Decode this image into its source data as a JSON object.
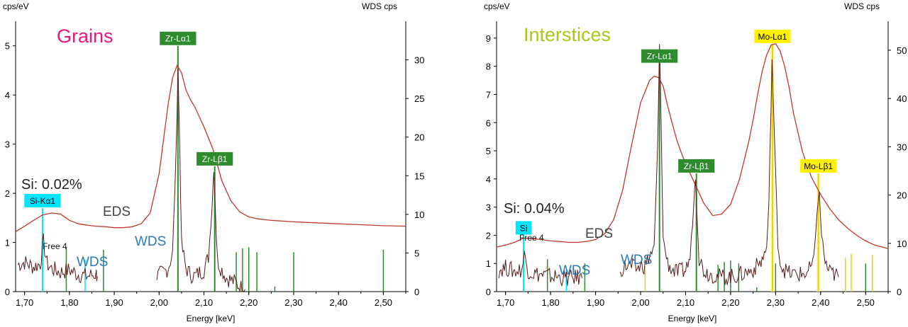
{
  "colors": {
    "eds_line": "#c0392b",
    "wds_line": "#5a1a1a",
    "green_marker": "#2e8b2e",
    "cyan_marker": "#00e5ff",
    "yellow_marker": "#fff000",
    "wds_text": "#2a7ab8",
    "grains_title": "#e8177f",
    "interstices_title": "#a6c81d",
    "axis": "#000000",
    "yellow_fill": "#fff7a8"
  },
  "chart_data": [
    {
      "type": "line",
      "title": "Grains",
      "xlabel": "Energy [keV]",
      "ylabel_left": "cps/eV",
      "ylabel_right_top": "WDS  cps",
      "xlim": [
        1.68,
        2.55
      ],
      "ylim_left": [
        0,
        5.5
      ],
      "ylim_right": [
        0,
        35
      ],
      "xticks": [
        "1,70",
        "1,80",
        "1,90",
        "2,00",
        "2,10",
        "2,20",
        "2,30",
        "2,40",
        "2,50"
      ],
      "xtick_values": [
        1.7,
        1.8,
        1.9,
        2.0,
        2.1,
        2.2,
        2.3,
        2.4,
        2.5
      ],
      "yticks_left": [
        "0",
        "1",
        "2",
        "3",
        "4",
        "5"
      ],
      "ytick_left_values": [
        0,
        1,
        2,
        3,
        4,
        5
      ],
      "yticks_right": [
        "0",
        "5",
        "10",
        "15",
        "20",
        "25",
        "30"
      ],
      "ytick_right_values": [
        0,
        5,
        10,
        15,
        20,
        25,
        30
      ],
      "eds_series": {
        "name": "EDS",
        "x": [
          1.68,
          1.7,
          1.72,
          1.74,
          1.76,
          1.78,
          1.8,
          1.82,
          1.84,
          1.86,
          1.88,
          1.9,
          1.92,
          1.94,
          1.96,
          1.98,
          2.0,
          2.01,
          2.02,
          2.03,
          2.04,
          2.05,
          2.06,
          2.07,
          2.08,
          2.09,
          2.1,
          2.12,
          2.14,
          2.16,
          2.18,
          2.2,
          2.22,
          2.25,
          2.3,
          2.35,
          2.4,
          2.45,
          2.5,
          2.55
        ],
        "y": [
          1.22,
          1.33,
          1.45,
          1.56,
          1.6,
          1.58,
          1.45,
          1.38,
          1.35,
          1.33,
          1.32,
          1.3,
          1.3,
          1.32,
          1.38,
          1.6,
          2.4,
          3.1,
          3.8,
          4.35,
          4.6,
          4.45,
          4.1,
          3.9,
          3.75,
          3.55,
          3.35,
          2.9,
          2.25,
          1.85,
          1.62,
          1.52,
          1.48,
          1.45,
          1.42,
          1.4,
          1.38,
          1.36,
          1.34,
          1.33
        ]
      },
      "wds_series": {
        "name": "WDS",
        "segments": [
          {
            "x": [
              1.685,
              1.7,
              1.72,
              1.735,
              1.742,
              1.75,
              1.76,
              1.78,
              1.8,
              1.82,
              1.84,
              1.86,
              1.862
            ],
            "y": [
              3.5,
              3.8,
              3.2,
              3.6,
              6.5,
              3.6,
              3.0,
              2.5,
              2.8,
              2.2,
              2.0,
              2.3,
              2.0
            ]
          },
          {
            "x": [
              1.995,
              2.01,
              2.02,
              2.03,
              2.038,
              2.042,
              2.046,
              2.05,
              2.06,
              2.07,
              2.08,
              2.09,
              2.1,
              2.11,
              2.118,
              2.122,
              2.126,
              2.13,
              2.14,
              2.15,
              2.16,
              2.17,
              2.18,
              2.192
            ],
            "y": [
              2.0,
              2.5,
              3.0,
              5.0,
              18.0,
              29.0,
              19.0,
              6.0,
              3.0,
              2.2,
              2.0,
              2.5,
              2.8,
              4.5,
              11.0,
              16.0,
              10.0,
              4.0,
              2.8,
              1.8,
              1.5,
              1.2,
              0.6,
              0.3
            ]
          }
        ]
      },
      "markers": [
        {
          "label": "Si-Kα1",
          "x": 1.74,
          "height": 1.7,
          "color": "cyan",
          "labelled": true
        },
        {
          "label": "",
          "x": 1.835,
          "height": 0.65,
          "color": "cyan",
          "labelled": false
        },
        {
          "label": "Zr-Lα1",
          "x": 2.042,
          "height": 5.0,
          "color": "green",
          "labelled": true
        },
        {
          "label": "Zr-Lβ1",
          "x": 2.124,
          "height": 2.55,
          "color": "green",
          "labelled": true
        },
        {
          "label": "",
          "x": 1.793,
          "height": 0.9,
          "color": "green",
          "labelled": false
        },
        {
          "label": "",
          "x": 1.876,
          "height": 0.85,
          "color": "green",
          "labelled": false
        },
        {
          "label": "",
          "x": 2.172,
          "height": 0.8,
          "color": "green",
          "labelled": false
        },
        {
          "label": "",
          "x": 2.186,
          "height": 0.88,
          "color": "green",
          "labelled": false
        },
        {
          "label": "",
          "x": 2.2,
          "height": 0.9,
          "color": "green",
          "labelled": false
        },
        {
          "label": "",
          "x": 2.218,
          "height": 0.8,
          "color": "green",
          "labelled": false
        },
        {
          "label": "",
          "x": 2.258,
          "height": 0.1,
          "color": "green",
          "labelled": false
        },
        {
          "label": "",
          "x": 2.3,
          "height": 0.8,
          "color": "green",
          "labelled": false
        },
        {
          "label": "",
          "x": 2.5,
          "height": 0.85,
          "color": "green",
          "labelled": false
        }
      ],
      "annotations": {
        "title_text": "Grains",
        "si_text": "Si: 0.02%",
        "eds_text": "EDS",
        "wds_text_1": "WDS",
        "wds_text_2": "WDS",
        "free_text": "Free 4"
      }
    },
    {
      "type": "line",
      "title": "Interstices",
      "xlabel": "Energy [keV]",
      "ylabel_left": "cps/eV",
      "ylabel_right_top": "WDS  cps",
      "xlim": [
        1.68,
        2.55
      ],
      "ylim_left": [
        0,
        9.6
      ],
      "ylim_right": [
        0,
        56
      ],
      "xticks": [
        "1,70",
        "1,80",
        "1,90",
        "2,00",
        "2,10",
        "2,20",
        "2,30",
        "2,40",
        "2,50"
      ],
      "xtick_values": [
        1.7,
        1.8,
        1.9,
        2.0,
        2.1,
        2.2,
        2.3,
        2.4,
        2.5
      ],
      "yticks_left": [
        "0",
        "1",
        "2",
        "3",
        "4",
        "5",
        "6",
        "7",
        "8",
        "9"
      ],
      "ytick_left_values": [
        0,
        1,
        2,
        3,
        4,
        5,
        6,
        7,
        8,
        9
      ],
      "yticks_right": [
        "0",
        "10",
        "20",
        "30",
        "40",
        "50"
      ],
      "ytick_right_values": [
        0,
        10,
        20,
        30,
        40,
        50
      ],
      "eds_series": {
        "name": "EDS",
        "x": [
          1.68,
          1.7,
          1.72,
          1.74,
          1.76,
          1.78,
          1.8,
          1.82,
          1.84,
          1.86,
          1.88,
          1.9,
          1.92,
          1.94,
          1.96,
          1.98,
          2.0,
          2.02,
          2.03,
          2.04,
          2.05,
          2.06,
          2.07,
          2.08,
          2.09,
          2.1,
          2.12,
          2.14,
          2.16,
          2.18,
          2.2,
          2.22,
          2.24,
          2.25,
          2.26,
          2.27,
          2.28,
          2.29,
          2.3,
          2.31,
          2.32,
          2.33,
          2.34,
          2.36,
          2.38,
          2.4,
          2.42,
          2.44,
          2.46,
          2.48,
          2.5,
          2.52,
          2.55
        ],
        "y": [
          1.58,
          1.65,
          1.75,
          1.9,
          1.88,
          1.85,
          1.8,
          1.78,
          1.75,
          1.75,
          1.78,
          1.85,
          2.05,
          2.55,
          3.6,
          5.2,
          6.7,
          7.5,
          7.65,
          7.6,
          7.3,
          6.6,
          6.0,
          5.4,
          4.95,
          4.55,
          3.85,
          3.15,
          2.7,
          2.75,
          3.1,
          4.0,
          5.3,
          6.1,
          7.0,
          7.8,
          8.4,
          8.75,
          8.8,
          8.55,
          8.0,
          7.25,
          6.3,
          4.95,
          4.05,
          3.45,
          2.95,
          2.55,
          2.25,
          2.0,
          1.8,
          1.65,
          1.53
        ]
      },
      "wds_series": {
        "name": "WDS",
        "segments": [
          {
            "x": [
              1.685,
              1.7,
              1.72,
              1.736,
              1.742,
              1.75,
              1.76,
              1.78,
              1.8,
              1.82,
              1.84,
              1.86,
              1.87
            ],
            "y": [
              4.5,
              5.0,
              4.2,
              4.6,
              7.5,
              4.5,
              3.8,
              3.5,
              3.2,
              3.0,
              2.7,
              3.0,
              2.8
            ]
          },
          {
            "x": [
              1.955,
              1.97,
              1.99,
              2.01,
              2.03,
              2.038,
              2.042,
              2.046,
              2.05,
              2.06,
              2.07,
              2.08,
              2.09,
              2.1,
              2.11,
              2.118,
              2.122,
              2.126,
              2.13,
              2.14,
              2.15,
              2.16,
              2.17,
              2.19,
              2.21,
              2.23,
              2.25,
              2.27,
              2.28,
              2.285,
              2.292,
              2.298,
              2.305,
              2.31,
              2.32,
              2.33,
              2.35,
              2.37,
              2.385,
              2.392,
              2.397,
              2.402,
              2.41,
              2.42,
              2.43,
              2.44
            ],
            "y": [
              4.5,
              5.5,
              4.8,
              5.5,
              9.0,
              30.0,
              51.0,
              33.0,
              11.0,
              6.0,
              4.5,
              4.0,
              4.2,
              4.5,
              7.0,
              18.0,
              24.0,
              15.0,
              7.0,
              4.5,
              3.8,
              3.5,
              3.2,
              3.0,
              3.2,
              3.8,
              4.5,
              6.5,
              9.0,
              18.0,
              48.0,
              30.0,
              10.0,
              6.0,
              4.5,
              3.8,
              3.5,
              3.8,
              6.0,
              17.0,
              20.0,
              12.0,
              6.0,
              4.0,
              3.6,
              3.0
            ]
          }
        ]
      },
      "markers": [
        {
          "label": "Si",
          "x": 1.74,
          "height": 2.0,
          "color": "cyan",
          "labelled": true
        },
        {
          "label": "",
          "x": 1.835,
          "height": 0.8,
          "color": "cyan",
          "labelled": false
        },
        {
          "label": "Zr-Lα1",
          "x": 2.042,
          "height": 8.1,
          "color": "green",
          "labelled": true
        },
        {
          "label": "Zr-Lβ1",
          "x": 2.124,
          "height": 4.2,
          "color": "green",
          "labelled": true
        },
        {
          "label": "Mo-Lα1",
          "x": 2.293,
          "height": 8.8,
          "color": "yellow",
          "labelled": true
        },
        {
          "label": "Mo-Lβ1",
          "x": 2.395,
          "height": 4.2,
          "color": "yellow",
          "labelled": true
        },
        {
          "label": "",
          "x": 1.793,
          "height": 1.15,
          "color": "green",
          "labelled": false
        },
        {
          "label": "",
          "x": 1.876,
          "height": 1.0,
          "color": "green",
          "labelled": false
        },
        {
          "label": "",
          "x": 2.172,
          "height": 0.95,
          "color": "green",
          "labelled": false
        },
        {
          "label": "",
          "x": 2.186,
          "height": 1.05,
          "color": "green",
          "labelled": false
        },
        {
          "label": "",
          "x": 2.2,
          "height": 1.1,
          "color": "green",
          "labelled": false
        },
        {
          "label": "",
          "x": 2.218,
          "height": 1.0,
          "color": "green",
          "labelled": false
        },
        {
          "label": "",
          "x": 2.258,
          "height": 0.15,
          "color": "green",
          "labelled": false
        },
        {
          "label": "",
          "x": 2.3,
          "height": 1.0,
          "color": "green",
          "labelled": false
        },
        {
          "label": "",
          "x": 2.5,
          "height": 1.0,
          "color": "green",
          "labelled": false
        },
        {
          "label": "",
          "x": 2.01,
          "height": 0.9,
          "color": "yellow",
          "labelled": false
        },
        {
          "label": "",
          "x": 2.455,
          "height": 1.2,
          "color": "yellow",
          "labelled": false
        },
        {
          "label": "",
          "x": 2.468,
          "height": 1.35,
          "color": "yellow",
          "labelled": false
        },
        {
          "label": "",
          "x": 2.515,
          "height": 1.3,
          "color": "yellow",
          "labelled": false
        }
      ],
      "annotations": {
        "title_text": "Interstices",
        "si_text": "Si: 0.04%",
        "eds_text": "EDS",
        "wds_text_1": "WDS",
        "wds_text_2": "WDS",
        "free_text": "Free 4"
      }
    }
  ]
}
